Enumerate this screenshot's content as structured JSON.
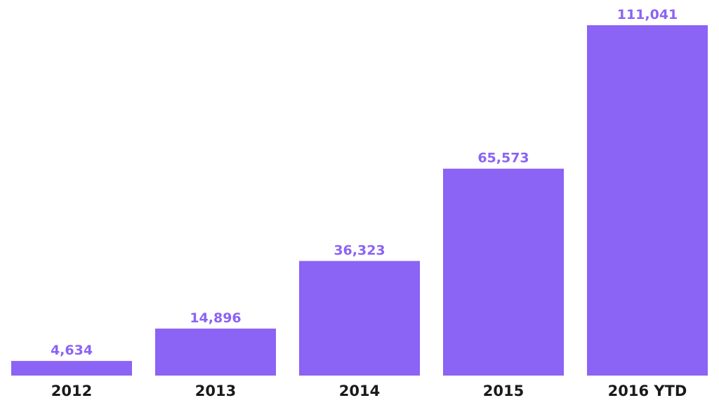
{
  "chart_data": {
    "type": "bar",
    "categories": [
      "2012",
      "2013",
      "2014",
      "2015",
      "2016 YTD"
    ],
    "values": [
      4634,
      14896,
      36323,
      65573,
      111041
    ],
    "value_labels": [
      "4,634",
      "14,896",
      "36,323",
      "65,573",
      "111,041"
    ],
    "title": "",
    "xlabel": "",
    "ylabel": "",
    "ylim": [
      0,
      111041
    ],
    "grid": false,
    "bar_color": "#8b63f5",
    "value_label_color": "#8b63f5",
    "category_label_color": "#1a1a1a"
  }
}
